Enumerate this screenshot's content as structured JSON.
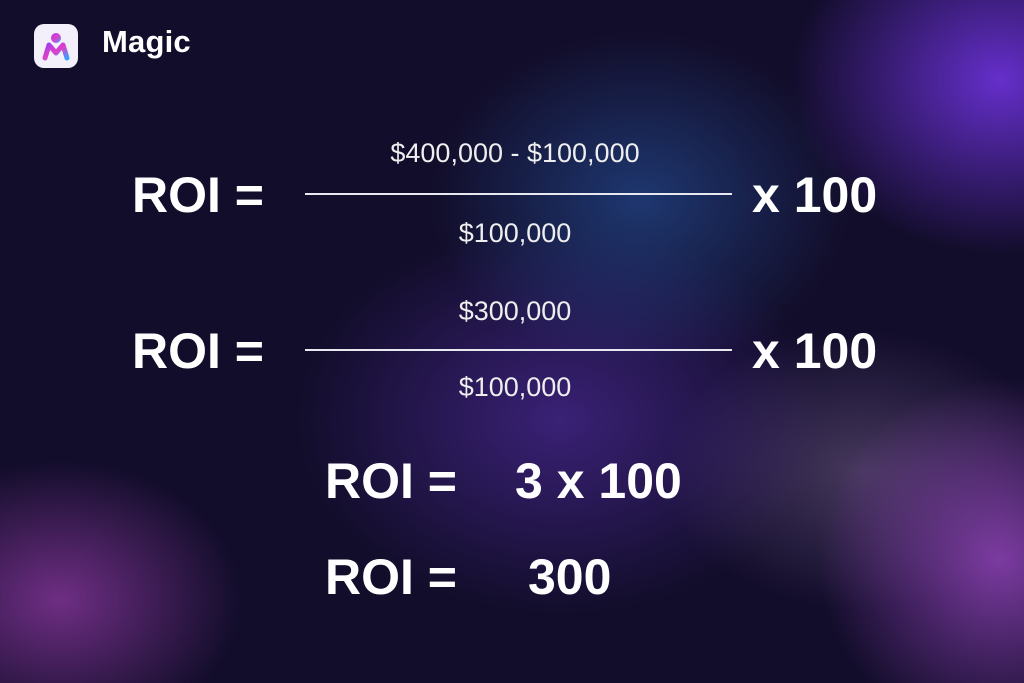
{
  "brand": {
    "name": "Magic",
    "logo_icon": "magic-m-logo"
  },
  "equations": [
    {
      "lhs": "ROI =",
      "numerator": "$400,000 - $100,000",
      "denominator": "$100,000",
      "multiplier": "x 100"
    },
    {
      "lhs": "ROI =",
      "numerator": "$300,000",
      "denominator": "$100,000",
      "multiplier": "x 100"
    },
    {
      "lhs": "ROI =",
      "rhs": "3 x 100"
    },
    {
      "lhs": "ROI =",
      "rhs": "300"
    }
  ]
}
